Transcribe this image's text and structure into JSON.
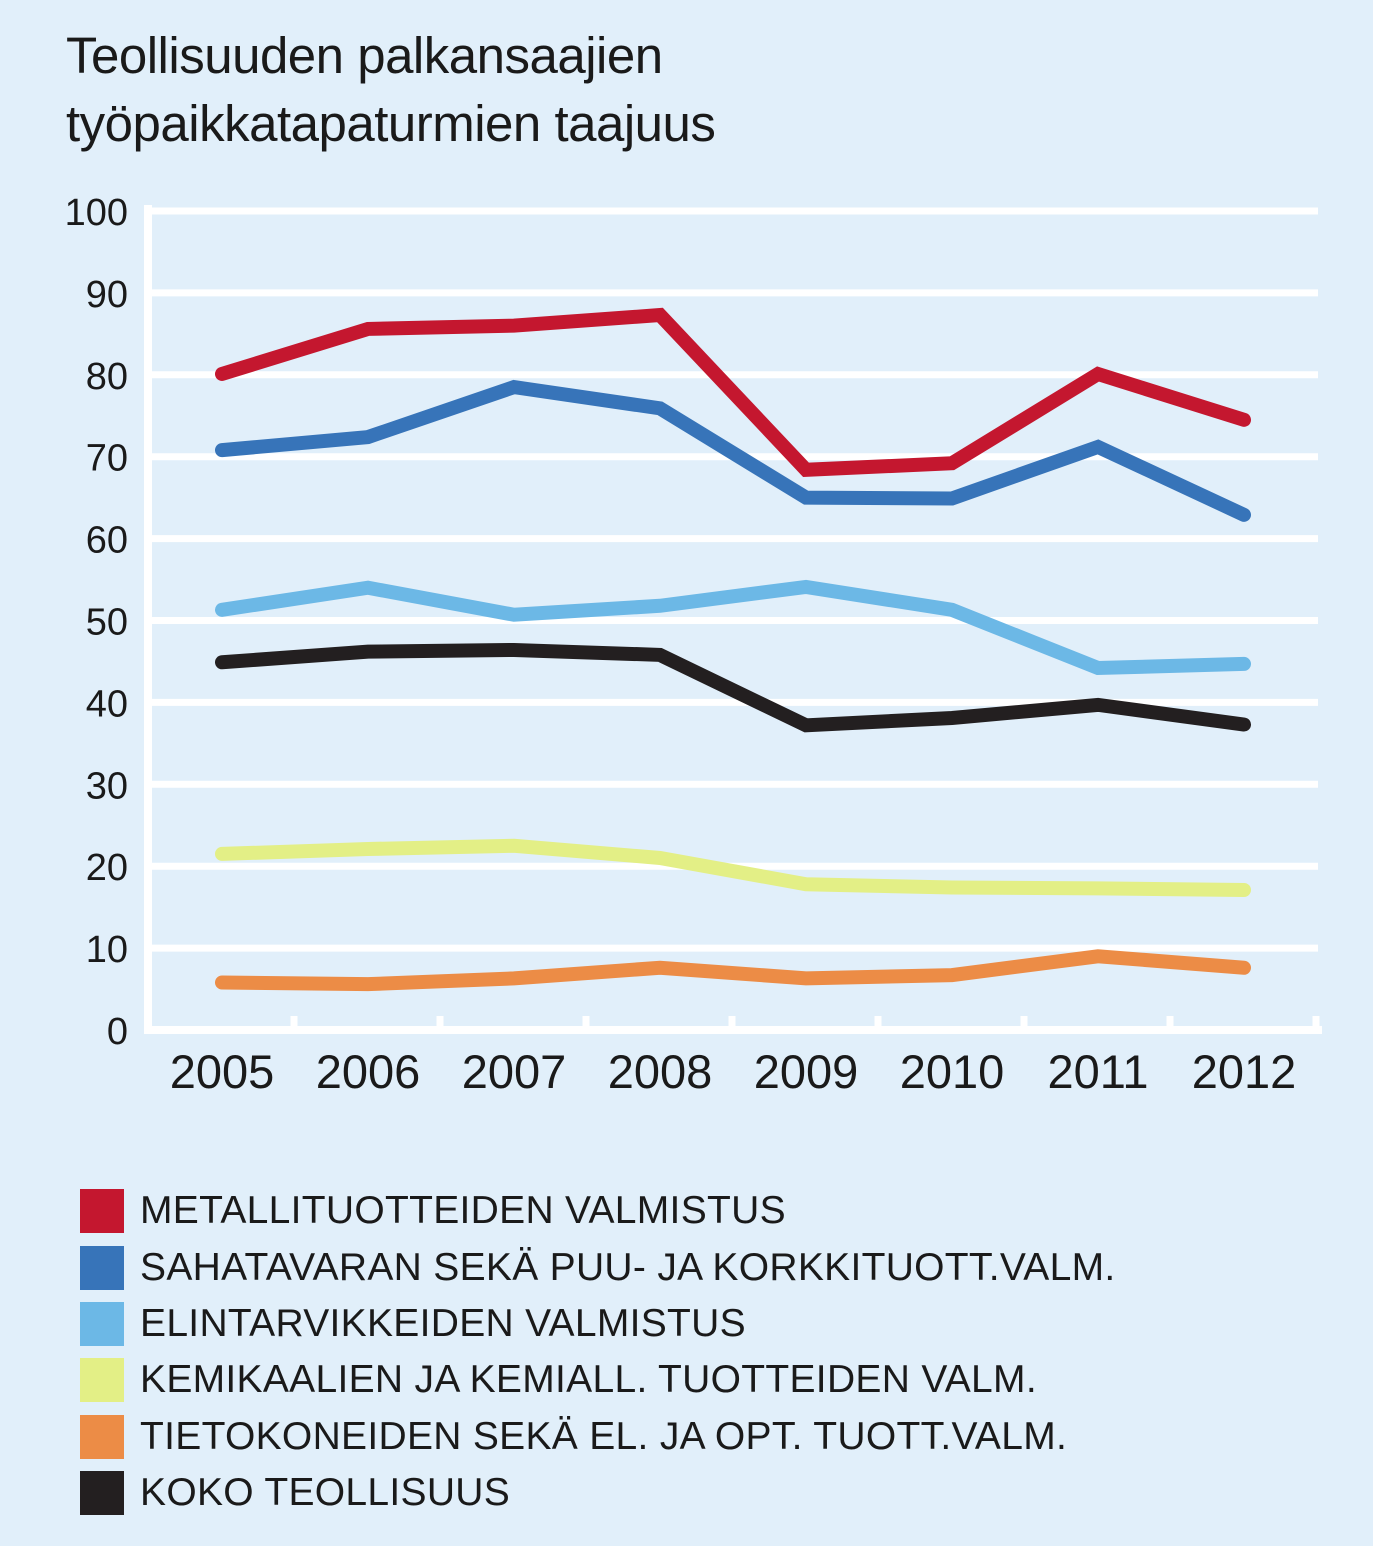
{
  "chart_data": {
    "type": "line",
    "title_lines": [
      "Teollisuuden palkansaajien",
      "työpaikkatapaturmien taajuus"
    ],
    "x": [
      "2005",
      "2006",
      "2007",
      "2008",
      "2009",
      "2010",
      "2011",
      "2012"
    ],
    "ylim": [
      0,
      100
    ],
    "yticks": [
      "0",
      "10",
      "20",
      "30",
      "40",
      "50",
      "60",
      "70",
      "80",
      "90",
      "100"
    ],
    "grid": true,
    "legend_position": "bottom",
    "series": [
      {
        "name": "METALLITUOTTEIDEN VALMISTUS",
        "color": "#c4172f",
        "values": [
          80.1,
          85.6,
          86.0,
          87.3,
          68.4,
          69.2,
          80.1,
          74.5
        ]
      },
      {
        "name": "SAHATAVARAN SEKÄ PUU- JA KORKKITUOTT.VALM.",
        "color": "#3774b9",
        "values": [
          70.8,
          72.4,
          78.5,
          75.9,
          65.0,
          64.9,
          71.2,
          62.9
        ]
      },
      {
        "name": "ELINTARVIKKEIDEN VALMISTUS",
        "color": "#6cb8e6",
        "values": [
          51.3,
          54.0,
          50.7,
          51.8,
          54.1,
          51.3,
          44.2,
          44.7
        ]
      },
      {
        "name": "KEMIKAALIEN JA KEMIALL. TUOTTEIDEN VALM.",
        "color": "#e3ef86",
        "values": [
          21.5,
          22.1,
          22.5,
          21.0,
          17.8,
          17.4,
          17.3,
          17.1
        ]
      },
      {
        "name": "TIETOKONEIDEN SEKÄ EL. JA OPT. TUOTT.VALM.",
        "color": "#ec8c46",
        "values": [
          5.8,
          5.6,
          6.3,
          7.6,
          6.3,
          6.7,
          9.0,
          7.6
        ]
      },
      {
        "name": "KOKO TEOLLISUUS",
        "color": "#231f20",
        "values": [
          44.9,
          46.2,
          46.4,
          45.8,
          37.2,
          38.1,
          39.7,
          37.3
        ]
      }
    ]
  }
}
